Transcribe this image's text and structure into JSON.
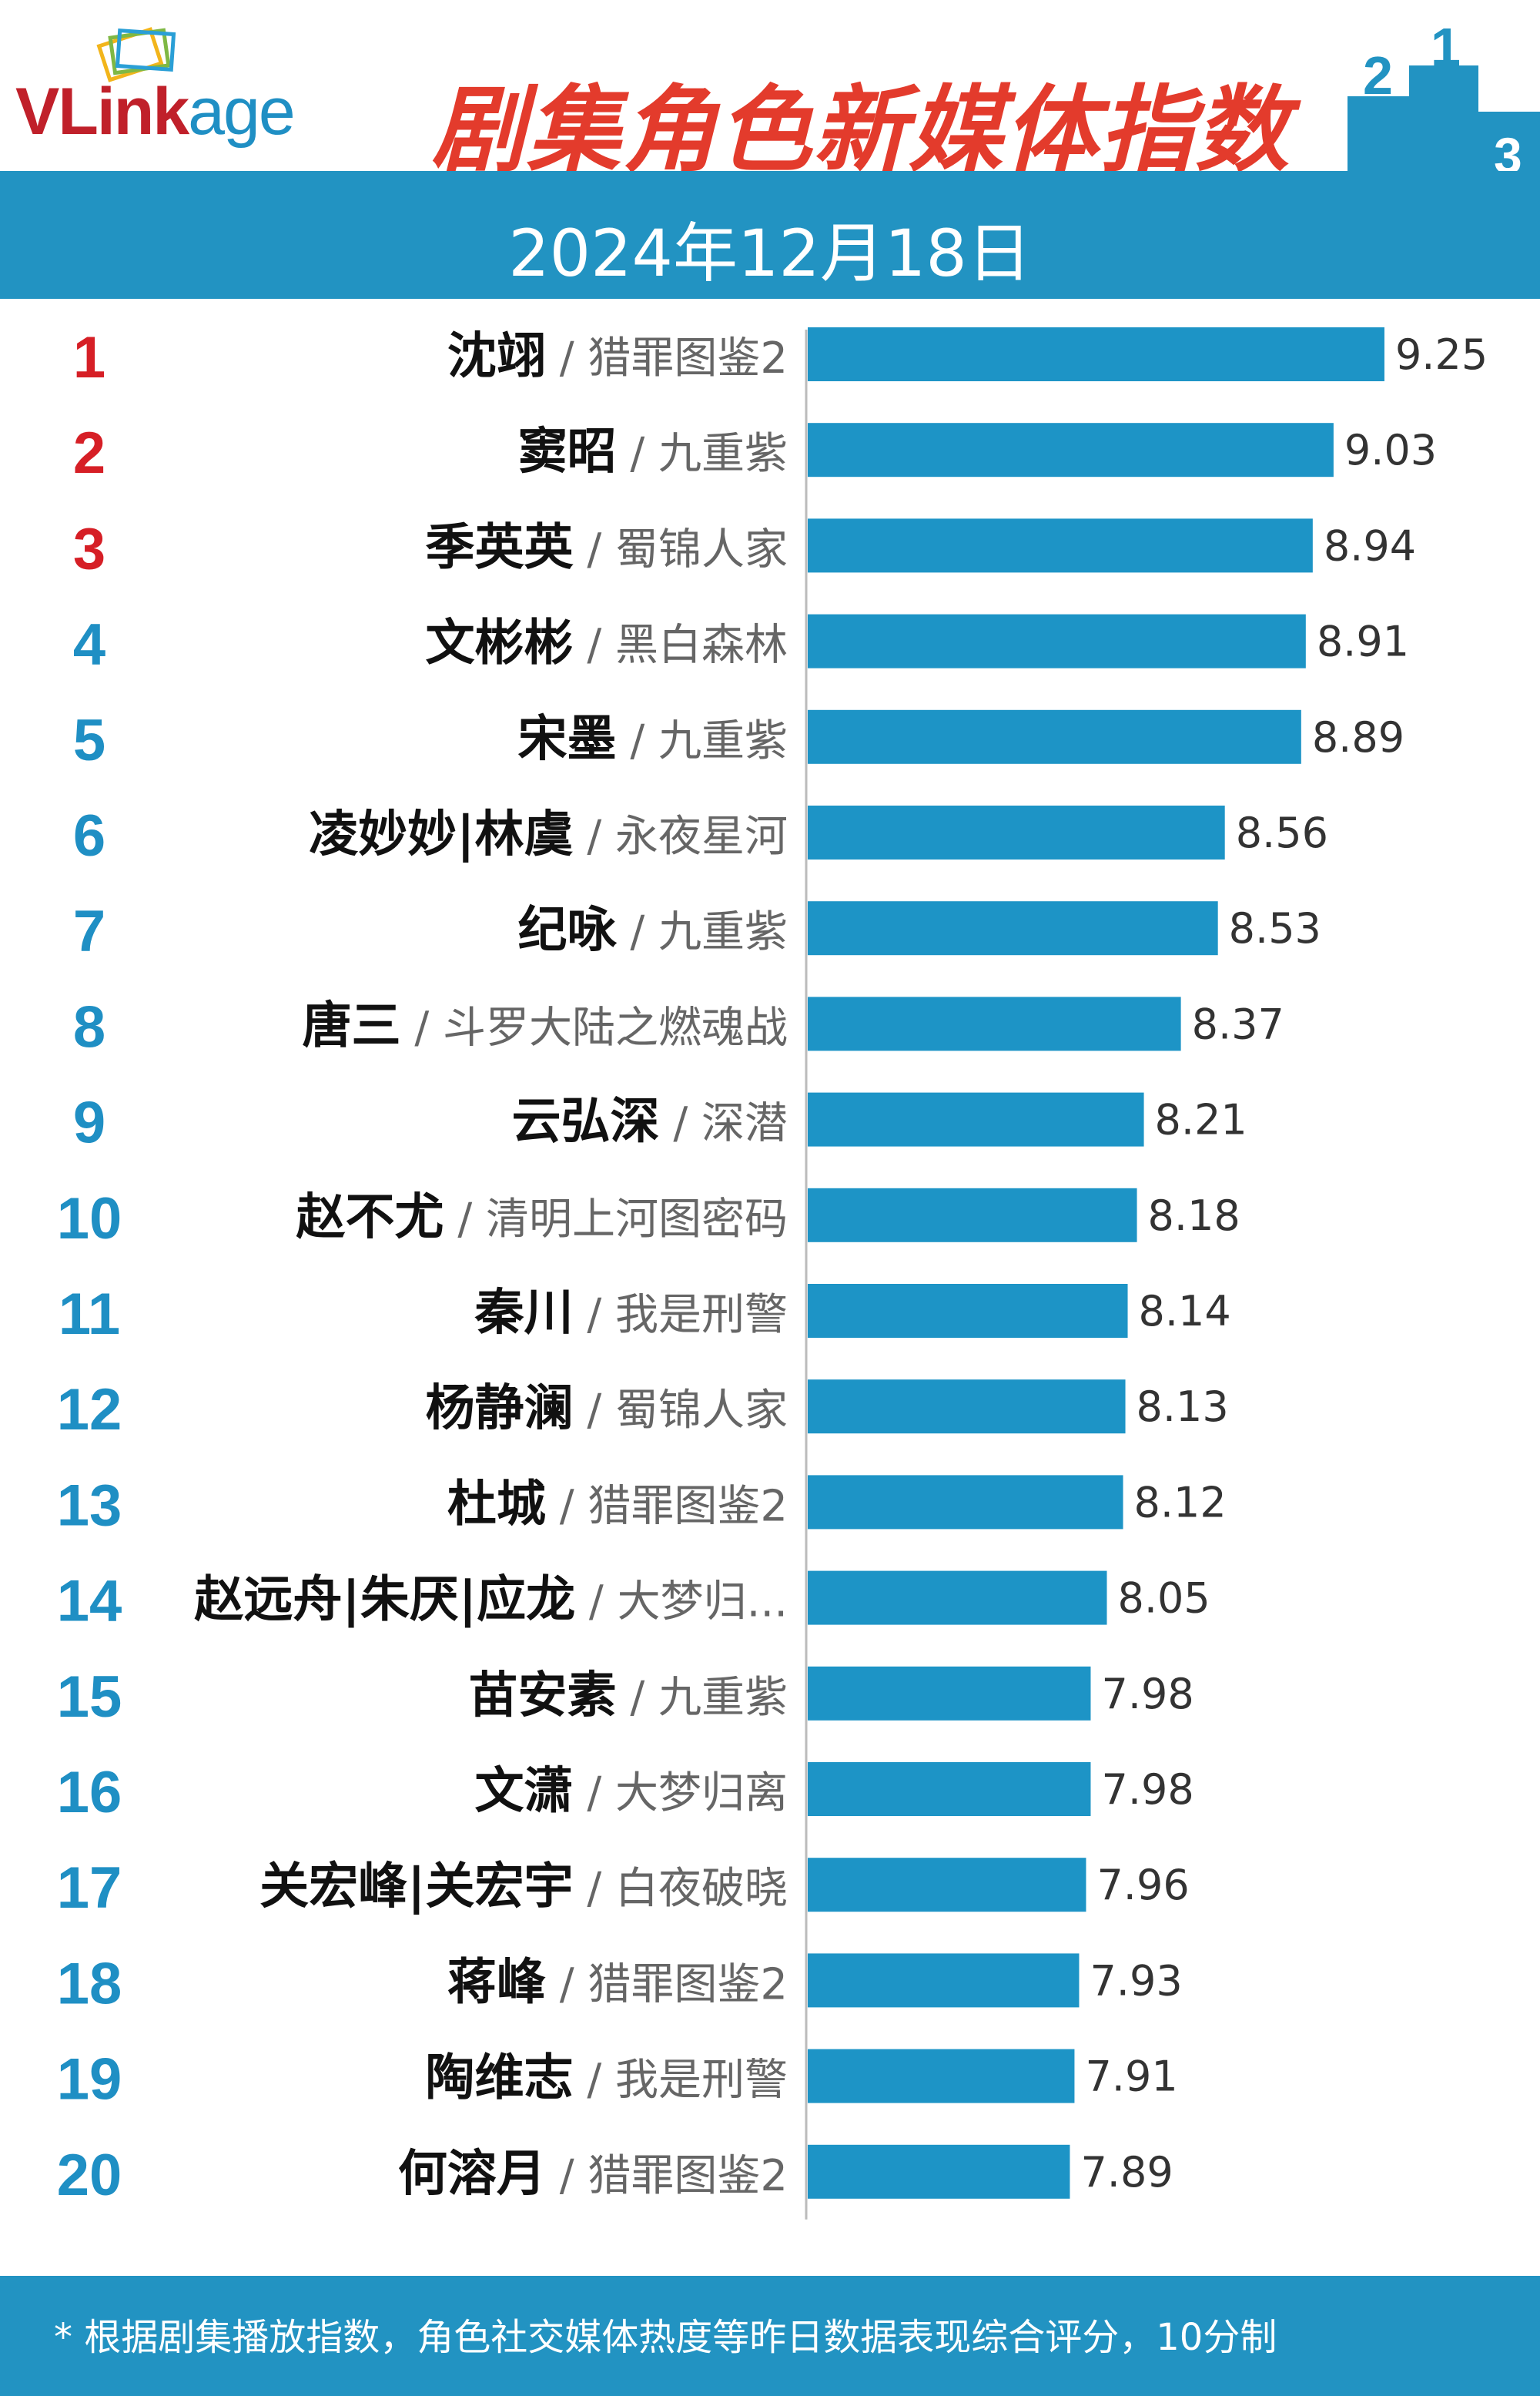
{
  "header": {
    "logo_main": "VLink",
    "logo_tail": "age",
    "title": "剧集角色新媒体指数",
    "date": "2024年12月18日",
    "brand_colors": {
      "red": "#c0202a",
      "blue": "#1f8fc4",
      "title": "#e33b2c",
      "band": "#2293c2"
    },
    "podium_icon": "podium-icon"
  },
  "chart_data": {
    "type": "bar",
    "orientation": "horizontal",
    "title": "剧集角色新媒体指数",
    "xlabel": "",
    "ylabel": "",
    "grid": false,
    "xlim": [
      6.75,
      9.35
    ],
    "bar_color": "#1d94c6",
    "rank_colors": {
      "top3": "#d61f26",
      "others": "#1f8fc4"
    },
    "rows": [
      {
        "rank": "1",
        "name": "沈翊",
        "show": "猎罪图鉴2",
        "value": 9.25,
        "label": "9.25"
      },
      {
        "rank": "2",
        "name": "窦昭",
        "show": "九重紫",
        "value": 9.03,
        "label": "9.03"
      },
      {
        "rank": "3",
        "name": "季英英",
        "show": "蜀锦人家",
        "value": 8.94,
        "label": "8.94"
      },
      {
        "rank": "4",
        "name": "文彬彬",
        "show": "黑白森林",
        "value": 8.91,
        "label": "8.91"
      },
      {
        "rank": "5",
        "name": "宋墨",
        "show": "九重紫",
        "value": 8.89,
        "label": "8.89"
      },
      {
        "rank": "6",
        "name": "凌妙妙|林虞",
        "show": "永夜星河",
        "value": 8.56,
        "label": "8.56"
      },
      {
        "rank": "7",
        "name": "纪咏",
        "show": "九重紫",
        "value": 8.53,
        "label": "8.53"
      },
      {
        "rank": "8",
        "name": "唐三",
        "show": "斗罗大陆之燃魂战",
        "value": 8.37,
        "label": "8.37"
      },
      {
        "rank": "9",
        "name": "云弘深",
        "show": "深潜",
        "value": 8.21,
        "label": "8.21"
      },
      {
        "rank": "10",
        "name": "赵不尤",
        "show": "清明上河图密码",
        "value": 8.18,
        "label": "8.18"
      },
      {
        "rank": "11",
        "name": "秦川",
        "show": "我是刑警",
        "value": 8.14,
        "label": "8.14"
      },
      {
        "rank": "12",
        "name": "杨静澜",
        "show": "蜀锦人家",
        "value": 8.13,
        "label": "8.13"
      },
      {
        "rank": "13",
        "name": "杜城",
        "show": "猎罪图鉴2",
        "value": 8.12,
        "label": "8.12"
      },
      {
        "rank": "14",
        "name": "赵远舟|朱厌|应龙",
        "show": "大梦归...",
        "value": 8.05,
        "label": "8.05"
      },
      {
        "rank": "15",
        "name": "苗安素",
        "show": "九重紫",
        "value": 7.98,
        "label": "7.98"
      },
      {
        "rank": "16",
        "name": "文潇",
        "show": "大梦归离",
        "value": 7.98,
        "label": "7.98"
      },
      {
        "rank": "17",
        "name": "关宏峰|关宏宇",
        "show": "白夜破晓",
        "value": 7.96,
        "label": "7.96"
      },
      {
        "rank": "18",
        "name": "蒋峰",
        "show": "猎罪图鉴2",
        "value": 7.93,
        "label": "7.93"
      },
      {
        "rank": "19",
        "name": "陶维志",
        "show": "我是刑警",
        "value": 7.91,
        "label": "7.91"
      },
      {
        "rank": "20",
        "name": "何溶月",
        "show": "猎罪图鉴2",
        "value": 7.89,
        "label": "7.89"
      }
    ],
    "separator": " / "
  },
  "footer": {
    "note": "* 根据剧集播放指数，角色社交媒体热度等昨日数据表现综合评分，10分制"
  }
}
